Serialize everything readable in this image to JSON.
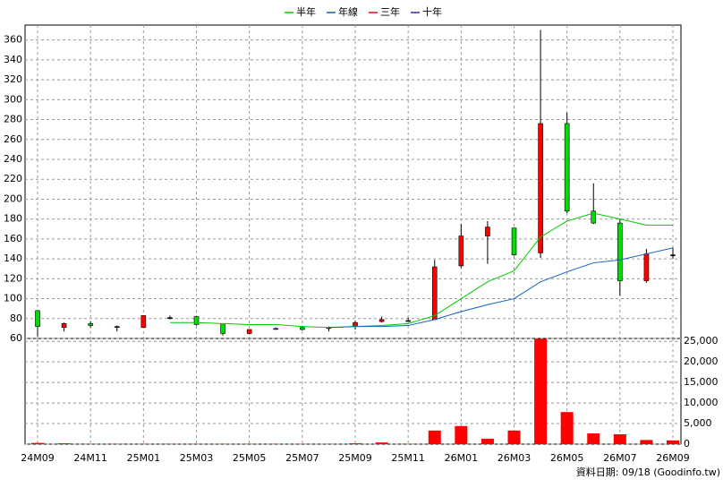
{
  "chart_data": [
    {
      "type": "candlestick",
      "categories": [
        "24M09",
        null,
        "24M11",
        null,
        "25M01",
        null,
        "25M03",
        null,
        "25M05",
        null,
        "25M07",
        null,
        "25M09",
        null,
        "25M11",
        null,
        "26M01",
        null,
        "26M03",
        null,
        "26M05",
        null,
        "26M07",
        null,
        "26M09"
      ],
      "open": [
        88,
        71,
        75,
        72,
        71,
        81,
        82,
        75,
        65,
        70,
        71,
        70,
        72,
        77,
        78,
        79,
        133,
        163,
        171,
        146,
        276,
        188,
        176,
        118,
        144
      ],
      "high": [
        88,
        76,
        77,
        73,
        83,
        83,
        82,
        75,
        69,
        71,
        72,
        72,
        78,
        82,
        81,
        139,
        175,
        178,
        171,
        370,
        287,
        216,
        180,
        150,
        151
      ],
      "low": [
        62,
        67,
        71,
        67,
        71,
        79,
        73,
        63,
        64,
        69,
        68,
        67,
        69,
        76,
        77,
        79,
        131,
        135,
        143,
        141,
        186,
        175,
        103,
        116,
        140
      ],
      "close": [
        72,
        75,
        73,
        72,
        83,
        81,
        74,
        65,
        69,
        70,
        69,
        71,
        76,
        79,
        78,
        132,
        163,
        172,
        144,
        276,
        188,
        176,
        118,
        145,
        144
      ],
      "up_color": "#ff0000",
      "down_color": "#00dd00",
      "series": [
        {
          "name": "半年",
          "color": "#00cc00",
          "values": [
            null,
            null,
            null,
            null,
            null,
            76,
            76,
            75,
            74,
            74,
            72,
            71,
            72,
            73,
            75,
            83,
            100,
            117,
            128,
            162,
            178,
            186,
            180,
            174,
            174
          ]
        },
        {
          "name": "年線",
          "color": "#1060c0",
          "values": [
            null,
            null,
            null,
            null,
            null,
            null,
            null,
            null,
            null,
            null,
            null,
            71,
            72,
            72,
            73,
            79,
            87,
            94,
            100,
            117,
            127,
            136,
            139,
            145,
            151
          ]
        },
        {
          "name": "三年",
          "color": "#ff0000",
          "values": [
            null,
            null,
            null,
            null,
            null,
            null,
            null,
            null,
            null,
            null,
            null,
            null,
            null,
            null,
            null,
            null,
            null,
            null,
            null,
            null,
            null,
            null,
            null,
            null,
            null
          ]
        },
        {
          "name": "十年",
          "color": "#4020c0",
          "values": [
            null,
            null,
            null,
            null,
            null,
            null,
            null,
            null,
            null,
            null,
            null,
            null,
            null,
            null,
            null,
            null,
            null,
            null,
            null,
            null,
            null,
            null,
            null,
            null,
            null
          ]
        }
      ],
      "ylim": [
        60,
        375
      ],
      "yticks": [
        60,
        80,
        100,
        120,
        140,
        160,
        180,
        200,
        220,
        240,
        260,
        280,
        300,
        320,
        340,
        360
      ],
      "grid": true
    },
    {
      "type": "bar",
      "color": "#ff0000",
      "values": [
        300,
        200,
        50,
        50,
        50,
        50,
        50,
        50,
        50,
        50,
        50,
        50,
        200,
        400,
        50,
        3300,
        4400,
        1300,
        3300,
        25600,
        7800,
        2600,
        2400,
        1000,
        900
      ],
      "ylim": [
        0,
        25700
      ],
      "yticks": [
        0,
        {
          "value": 5000,
          "label": "5,000"
        },
        {
          "value": 10000,
          "label": "10,000"
        },
        {
          "value": 15000,
          "label": "15,000"
        },
        {
          "value": 20000,
          "label": "20,000"
        },
        {
          "value": 25000,
          "label": "25,000"
        }
      ],
      "grid": true
    }
  ],
  "footer": "資料日期: 09/18 (Goodinfo.tw)"
}
